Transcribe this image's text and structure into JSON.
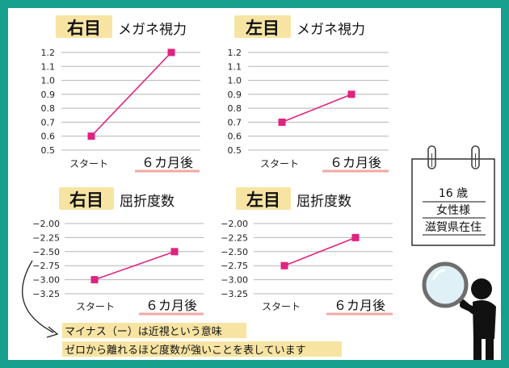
{
  "colors": {
    "frame": "#16a08d",
    "series": "#e0237f",
    "badge": "#f7e4a3",
    "underline": "#f2a8a3"
  },
  "charts": [
    {
      "eye": "右目",
      "title": "メガネ視力",
      "yticks": [
        "1.2",
        "1.1",
        "1.0",
        "0.9",
        "0.8",
        "0.7",
        "0.6",
        "0.5"
      ]
    },
    {
      "eye": "左目",
      "title": "メガネ視力",
      "yticks": [
        "1.2",
        "1.1",
        "1.0",
        "0.9",
        "0.8",
        "0.7",
        "0.6",
        "0.5"
      ]
    },
    {
      "eye": "右目",
      "title": "屈折度数",
      "yticks": [
        "−2.00",
        "−2.25",
        "−2.50",
        "−2.75",
        "−3.00",
        "−3.25"
      ]
    },
    {
      "eye": "左目",
      "title": "屈折度数",
      "yticks": [
        "−2.00",
        "−2.25",
        "−2.50",
        "−2.75",
        "−3.00",
        "−3.25"
      ]
    }
  ],
  "chart_data": [
    {
      "type": "line",
      "title": "右目 メガネ視力",
      "categories": [
        "スタート",
        "６カ月後"
      ],
      "series": [
        {
          "values": [
            0.6,
            1.2
          ]
        }
      ],
      "ylim": [
        0.5,
        1.2
      ]
    },
    {
      "type": "line",
      "title": "左目 メガネ視力",
      "categories": [
        "スタート",
        "６カ月後"
      ],
      "series": [
        {
          "values": [
            0.7,
            0.9
          ]
        }
      ],
      "ylim": [
        0.5,
        1.2
      ]
    },
    {
      "type": "line",
      "title": "右目 屈折度数",
      "categories": [
        "スタート",
        "６カ月後"
      ],
      "series": [
        {
          "values": [
            -3.0,
            -2.5
          ]
        }
      ],
      "ylim": [
        -3.25,
        -2.0
      ]
    },
    {
      "type": "line",
      "title": "左目 屈折度数",
      "categories": [
        "スタート",
        "６カ月後"
      ],
      "series": [
        {
          "values": [
            -2.75,
            -2.25
          ]
        }
      ],
      "ylim": [
        -3.25,
        -2.0
      ]
    }
  ],
  "note": {
    "line1": "マイナス（ー）は近視という意味",
    "line2": "ゼロから離れるほど度数が強いことを表しています"
  },
  "card": {
    "age": "16 歳",
    "gender": "女性様",
    "location": "滋賀県在住"
  },
  "icons": {
    "clip": "binder-clip-icon",
    "person": "person-with-magnifier-icon"
  }
}
